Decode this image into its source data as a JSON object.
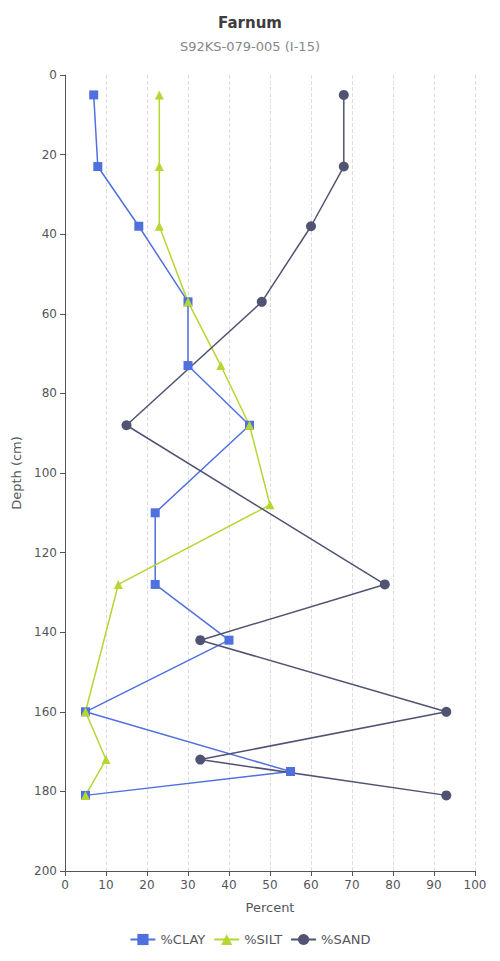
{
  "chart_data": {
    "type": "line",
    "title": "Farnum",
    "subtitle": "S92KS-079-005 (I-15)",
    "xlabel": "Percent",
    "ylabel": "Depth (cm)",
    "xlim": [
      0,
      100
    ],
    "xticks": [
      0,
      10,
      20,
      30,
      40,
      50,
      60,
      70,
      80,
      90,
      100
    ],
    "ylim": [
      0,
      200
    ],
    "yticks": [
      0,
      20,
      40,
      60,
      80,
      100,
      120,
      140,
      160,
      180,
      200
    ],
    "grid": "x",
    "legend": "bottom",
    "series": [
      {
        "name": "%CLAY",
        "marker": "square",
        "x": [
          7,
          8,
          18,
          30,
          30,
          45,
          22,
          22,
          40,
          5,
          55,
          5
        ],
        "y": [
          5,
          23,
          38,
          57,
          73,
          88,
          110,
          128,
          142,
          160,
          175,
          181
        ]
      },
      {
        "name": "%SILT",
        "marker": "triangle",
        "x": [
          23,
          23,
          23,
          30,
          38,
          45,
          50,
          13,
          5,
          10,
          5
        ],
        "y": [
          5,
          23,
          38,
          57,
          73,
          88,
          108,
          128,
          160,
          172,
          181
        ]
      },
      {
        "name": "%SAND",
        "marker": "circle",
        "x": [
          68,
          68,
          60,
          48,
          15,
          78,
          33,
          93,
          33,
          93
        ],
        "y": [
          5,
          23,
          38,
          57,
          88,
          128,
          142,
          160,
          172,
          181
        ]
      }
    ]
  }
}
